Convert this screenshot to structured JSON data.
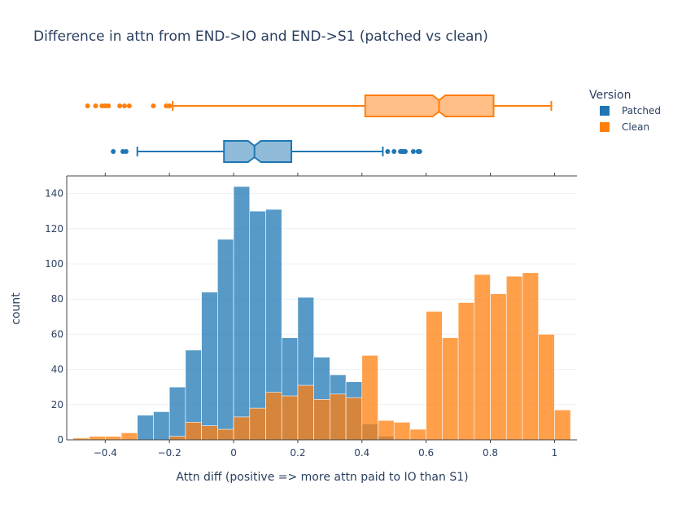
{
  "chart_data": {
    "type": "histogram",
    "title": "Difference in attn from END->IO and END->S1 (patched vs clean)",
    "xlabel": "Attn diff (positive => more attn paid to IO than S1)",
    "ylabel": "count",
    "xlim": [
      -0.52,
      1.07
    ],
    "ylim": [
      0,
      150
    ],
    "x_ticks": [
      -0.4,
      -0.2,
      0,
      0.2,
      0.4,
      0.6,
      0.8,
      1
    ],
    "x_tick_labels": [
      "−0.4",
      "−0.2",
      "0",
      "0.2",
      "0.4",
      "0.6",
      "0.8",
      "1"
    ],
    "y_ticks": [
      0,
      20,
      40,
      60,
      80,
      100,
      120,
      140
    ],
    "bin_start": -0.5,
    "bin_width": 0.05,
    "barmode": "overlay",
    "legend": {
      "title": "Version",
      "position": "top-right"
    },
    "series": [
      {
        "name": "Patched",
        "color": "#1f77b4",
        "counts": [
          0,
          0,
          0,
          0,
          14,
          16,
          30,
          51,
          84,
          114,
          144,
          130,
          131,
          58,
          81,
          47,
          37,
          33,
          9,
          2,
          0,
          0,
          0,
          0,
          0,
          0,
          0,
          0,
          0,
          0
        ],
        "box": {
          "min": -0.3,
          "q1": -0.03,
          "median": 0.065,
          "q3": 0.18,
          "max": 0.465,
          "notch_low": 0.045,
          "notch_high": 0.085,
          "outliers": [
            -0.375,
            -0.345,
            -0.335,
            0.48,
            0.5,
            0.52,
            0.525,
            0.53,
            0.535,
            0.56,
            0.575,
            0.58
          ]
        }
      },
      {
        "name": "Clean",
        "color": "#ff7f0e",
        "counts": [
          1,
          2,
          2,
          4,
          0,
          0,
          2,
          10,
          8,
          6,
          13,
          18,
          27,
          25,
          31,
          23,
          26,
          24,
          48,
          11,
          10,
          6,
          73,
          58,
          78,
          94,
          83,
          93,
          95,
          60,
          17
        ],
        "counts_note": "",
        "box": {
          "min": -0.19,
          "q1": 0.41,
          "median": 0.64,
          "q3": 0.81,
          "max": 0.99,
          "notch_low": 0.62,
          "notch_high": 0.66,
          "outliers": [
            -0.455,
            -0.43,
            -0.41,
            -0.4,
            -0.39,
            -0.355,
            -0.34,
            -0.325,
            -0.25,
            -0.21,
            -0.2
          ]
        }
      }
    ]
  }
}
